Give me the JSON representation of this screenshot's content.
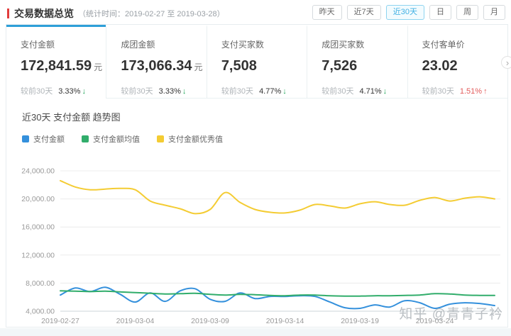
{
  "header": {
    "title": "交易数据总览",
    "subtitle": "（统计时间：2019-02-27 至 2019-03-28）",
    "accent_color": "#e23c3c",
    "active_color": "#41b0e3",
    "range_buttons": [
      {
        "label": "昨天",
        "active": false
      },
      {
        "label": "近7天",
        "active": false
      },
      {
        "label": "近30天",
        "active": true
      },
      {
        "label": "日",
        "active": false
      },
      {
        "label": "周",
        "active": false
      },
      {
        "label": "月",
        "active": false
      }
    ]
  },
  "metrics": [
    {
      "label": "支付金额",
      "value": "172,841.59",
      "unit": "元",
      "compare_label": "较前30天",
      "change": "3.33%",
      "arrow": "↓",
      "direction": "down",
      "active": true
    },
    {
      "label": "成团金额",
      "value": "173,066.34",
      "unit": "元",
      "compare_label": "较前30天",
      "change": "3.33%",
      "arrow": "↓",
      "direction": "down",
      "active": false
    },
    {
      "label": "支付买家数",
      "value": "7,508",
      "unit": "",
      "compare_label": "较前30天",
      "change": "4.77%",
      "arrow": "↓",
      "direction": "down",
      "active": false
    },
    {
      "label": "成团买家数",
      "value": "7,526",
      "unit": "",
      "compare_label": "较前30天",
      "change": "4.71%",
      "arrow": "↓",
      "direction": "down",
      "active": false
    },
    {
      "label": "支付客单价",
      "value": "23.02",
      "unit": "",
      "compare_label": "较前30天",
      "change": "1.51%",
      "arrow": "↑",
      "direction": "up",
      "active": false
    }
  ],
  "status_colors": {
    "down": "#21a65a",
    "up": "#e25b5b"
  },
  "icons": {
    "next_chevron": "›"
  },
  "chart": {
    "title": "近30天 支付金额 趋势图",
    "watermark": "知乎 @青青子衿"
  },
  "chart_data": {
    "type": "line",
    "title": "近30天 支付金额 趋势图",
    "x": [
      "2019-02-27",
      "2019-02-28",
      "2019-03-01",
      "2019-03-02",
      "2019-03-03",
      "2019-03-04",
      "2019-03-05",
      "2019-03-06",
      "2019-03-07",
      "2019-03-08",
      "2019-03-09",
      "2019-03-10",
      "2019-03-11",
      "2019-03-12",
      "2019-03-13",
      "2019-03-14",
      "2019-03-15",
      "2019-03-16",
      "2019-03-17",
      "2019-03-18",
      "2019-03-19",
      "2019-03-20",
      "2019-03-21",
      "2019-03-22",
      "2019-03-23",
      "2019-03-24",
      "2019-03-25",
      "2019-03-26",
      "2019-03-27",
      "2019-03-28"
    ],
    "series": [
      {
        "name": "支付金额",
        "color": "#3490dc",
        "values": [
          6300,
          7300,
          6800,
          7400,
          6400,
          5300,
          6600,
          5400,
          6900,
          7200,
          5700,
          5400,
          6600,
          5800,
          6100,
          6100,
          6200,
          6100,
          5300,
          4500,
          4400,
          4900,
          4600,
          5500,
          5200,
          4400,
          5000,
          5200,
          5100,
          4800
        ]
      },
      {
        "name": "支付金额均值",
        "color": "#31ad6b",
        "values": [
          6900,
          6850,
          6800,
          6850,
          6750,
          6650,
          6550,
          6450,
          6500,
          6550,
          6400,
          6300,
          6400,
          6350,
          6250,
          6200,
          6300,
          6300,
          6200,
          6150,
          6150,
          6200,
          6200,
          6250,
          6300,
          6500,
          6450,
          6300,
          6250,
          6250
        ]
      },
      {
        "name": "支付金额优秀值",
        "color": "#f4cc33",
        "values": [
          22600,
          21700,
          21300,
          21400,
          21500,
          21300,
          19700,
          19100,
          18600,
          17900,
          18500,
          20900,
          19500,
          18500,
          18100,
          18000,
          18400,
          19200,
          19000,
          18700,
          19300,
          19600,
          19200,
          19100,
          19800,
          20200,
          19700,
          20100,
          20300,
          20000
        ]
      }
    ],
    "ylim": [
      4000,
      24000
    ],
    "yticks": [
      "4,000.00",
      "8,000.00",
      "12,000.00",
      "16,000.00",
      "20,000.00",
      "24,000.00"
    ],
    "xtick_every": 5,
    "grid": true,
    "legend_position": "top-left"
  }
}
